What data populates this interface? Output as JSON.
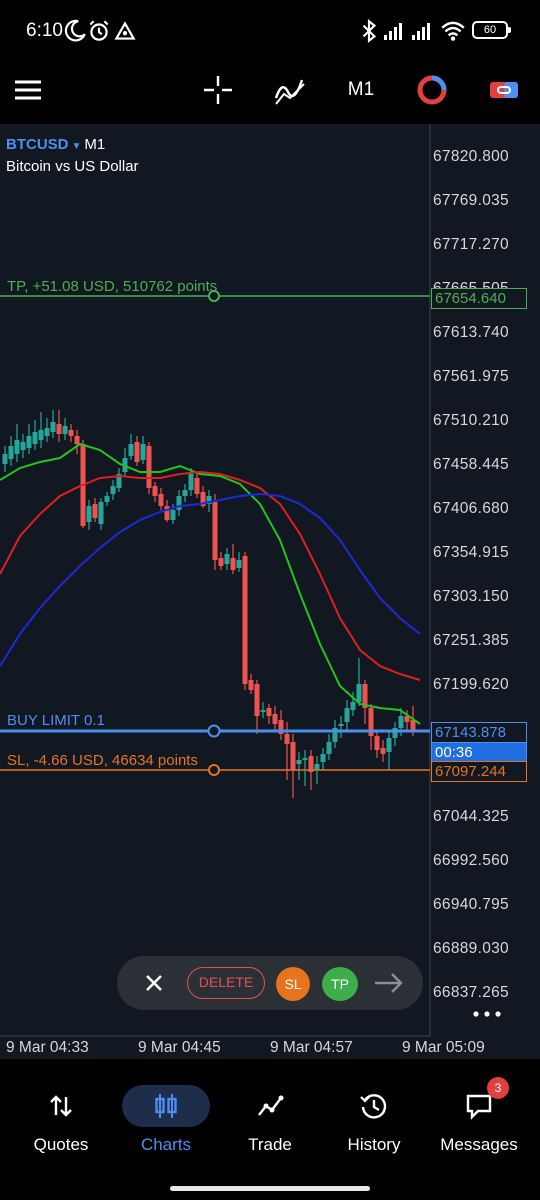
{
  "status_bar": {
    "time": "6:10",
    "battery": "60"
  },
  "toolbar": {
    "timeframe": "M1"
  },
  "chart": {
    "symbol": "BTCUSD",
    "timeframe": "M1",
    "description": "Bitcoin vs US Dollar",
    "price_axis": [
      "67820.800",
      "67769.035",
      "67717.270",
      "67665.505",
      "67613.740",
      "67561.975",
      "67510.210",
      "67458.445",
      "67406.680",
      "67354.915",
      "67303.150",
      "67251.385",
      "67199.620",
      "67044.325",
      "66992.560",
      "66940.795",
      "66889.030",
      "66837.265"
    ],
    "time_axis": [
      "9 Mar 04:33",
      "9 Mar 04:45",
      "9 Mar 04:57",
      "9 Mar 05:09"
    ],
    "tp_label": "TP, +51.08 USD, 510762 points",
    "tp_price": "67654.640",
    "buy_limit_label": "BUY LIMIT 0.1",
    "buy_limit_price": "67143.878",
    "countdown": "00:36",
    "sl_label": "SL, -4.66 USD, 46634 points",
    "sl_price": "67097.244",
    "colors": {
      "bull": "#26a69a",
      "bear": "#ef5350",
      "tp": "#4caf50",
      "sl": "#e8731f",
      "buy_limit": "#4d8ff0",
      "ma_fast": "#22c41e",
      "ma_mid": "#e02020",
      "ma_slow": "#1a2ad8"
    }
  },
  "order_bar": {
    "delete": "DELETE",
    "sl": "SL",
    "tp": "TP"
  },
  "nav": {
    "items": [
      {
        "label": "Quotes",
        "icon": "quotes-icon"
      },
      {
        "label": "Charts",
        "icon": "charts-icon"
      },
      {
        "label": "Trade",
        "icon": "trade-icon"
      },
      {
        "label": "History",
        "icon": "history-icon"
      },
      {
        "label": "Messages",
        "icon": "messages-icon"
      }
    ],
    "messages_badge": "3"
  }
}
